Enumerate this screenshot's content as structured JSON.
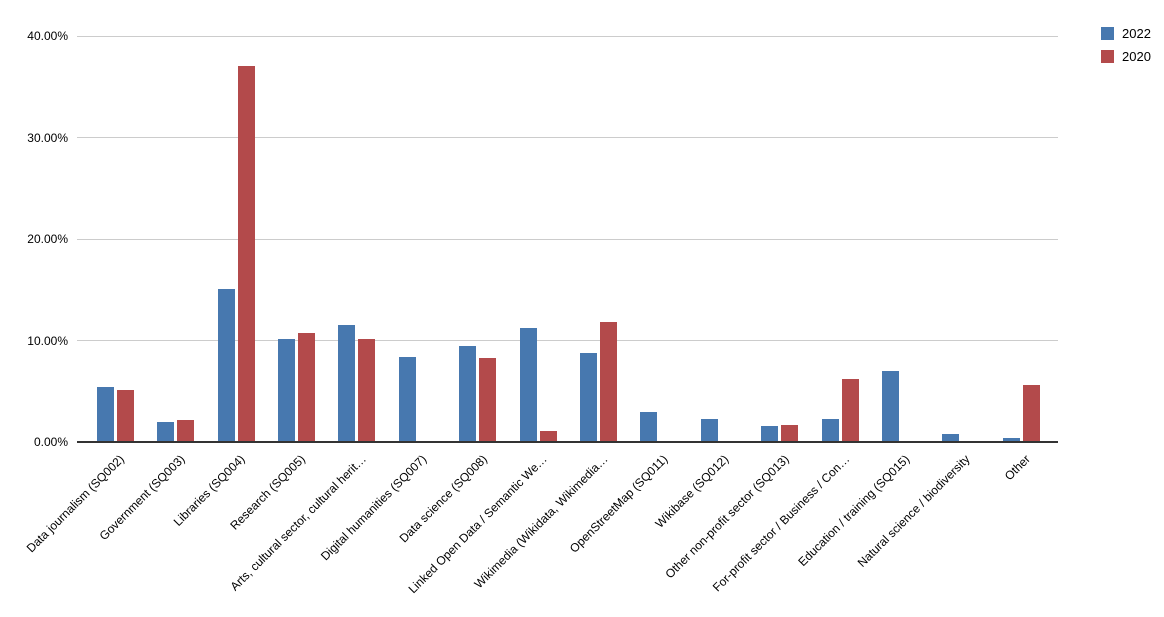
{
  "chart_data": {
    "type": "bar",
    "title": "",
    "xlabel": "",
    "ylabel": "",
    "categories": [
      "Data journalism (SQ002)",
      "Government (SQ003)",
      "Libraries (SQ004)",
      "Research (SQ005)",
      "Arts, cultural sector, cultural herit…",
      "Digital humanities (SQ007)",
      "Data science (SQ008)",
      "Linked Open Data / Semantic We…",
      "Wikimedia (Wikidata, Wikimedia…",
      "OpenStreetMap (SQ011)",
      "Wikibase (SQ012)",
      "Other non-profit sector (SQ013)",
      "For-profit sector / Business / Con…",
      "Education / training (SQ015)",
      "Natural science / biodiversity",
      "Other"
    ],
    "series": [
      {
        "name": "2022",
        "color": "#4778af",
        "values": [
          5.4,
          2.0,
          15.1,
          10.1,
          11.5,
          8.4,
          9.5,
          11.2,
          8.8,
          3.0,
          2.3,
          1.6,
          2.3,
          7.0,
          0.8,
          0.4
        ]
      },
      {
        "name": "2020",
        "color": "#b34a4b",
        "values": [
          5.1,
          2.2,
          37.0,
          10.7,
          10.1,
          0,
          8.3,
          1.1,
          11.8,
          0,
          0,
          1.7,
          6.2,
          0,
          0,
          5.6
        ]
      }
    ],
    "ylim": [
      0,
      40
    ],
    "yticks": {
      "values": [
        0,
        10,
        20,
        30,
        40
      ],
      "labels": [
        "0.00%",
        "10.00%",
        "20.00%",
        "30.00%",
        "40.00%"
      ]
    },
    "grid": true,
    "legend_position": "top-right",
    "colors": {
      "gridline": "#cccccc",
      "axis": "#333333",
      "text": "#000000",
      "background": "#ffffff"
    }
  }
}
